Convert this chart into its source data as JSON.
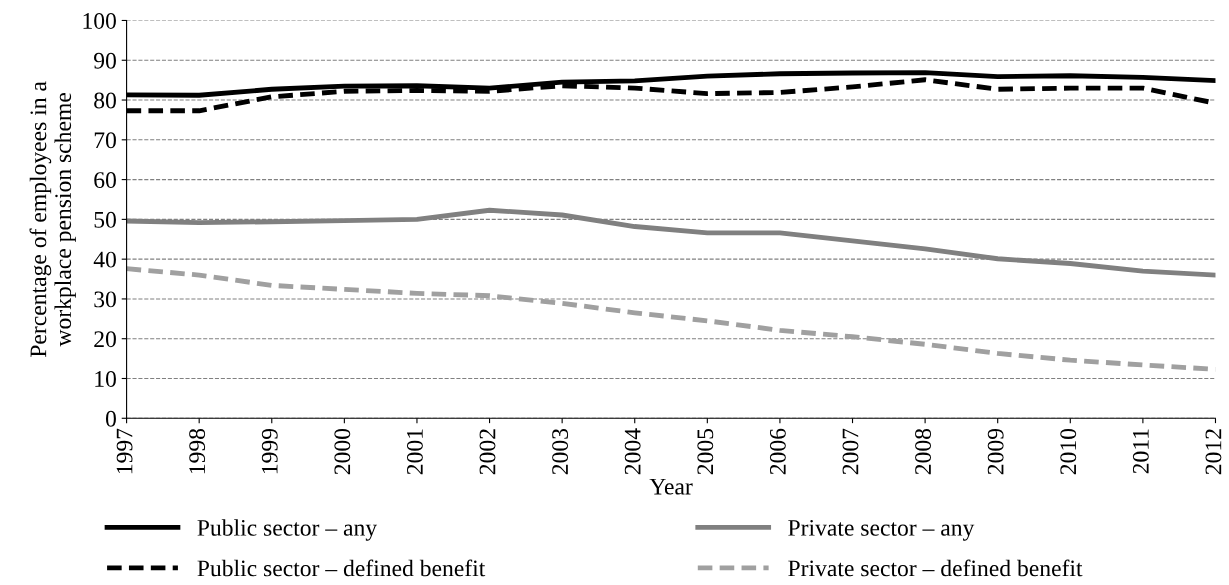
{
  "chart_data": {
    "type": "line",
    "xlabel": "Year",
    "ylabel": "Percentage of employees in a\nworkplace pension scheme",
    "x": [
      1997,
      1998,
      1999,
      2000,
      2001,
      2002,
      2003,
      2004,
      2005,
      2006,
      2007,
      2008,
      2009,
      2010,
      2011,
      2012
    ],
    "xlim": [
      1997,
      2012
    ],
    "xticks": [
      1997,
      1998,
      1999,
      2000,
      2001,
      2002,
      2003,
      2004,
      2005,
      2006,
      2007,
      2008,
      2009,
      2010,
      2011,
      2012
    ],
    "ylim": [
      0,
      100
    ],
    "yticks": [
      0,
      10,
      20,
      30,
      40,
      50,
      60,
      70,
      80,
      90,
      100
    ],
    "grid": "y",
    "legend": "bottom",
    "marker": "none",
    "series": [
      {
        "name": "Public sector – any",
        "color": "#000000",
        "line_style": "solid",
        "values": [
          81.3,
          81.2,
          82.7,
          83.5,
          83.6,
          83.0,
          84.5,
          84.8,
          86.0,
          86.6,
          86.8,
          86.9,
          85.9,
          86.1,
          85.7,
          84.9
        ]
      },
      {
        "name": "Public sector – defined benefit",
        "color": "#000000",
        "line_style": "dashed",
        "values": [
          77.3,
          77.3,
          80.8,
          82.2,
          82.4,
          82.2,
          83.6,
          83.0,
          81.6,
          81.9,
          83.3,
          85.1,
          82.7,
          83.0,
          83.0,
          79.2
        ]
      },
      {
        "name": "Private sector – any",
        "color": "#808080",
        "line_style": "solid",
        "values": [
          49.6,
          49.2,
          49.4,
          49.7,
          50.0,
          52.3,
          51.1,
          48.2,
          46.6,
          46.6,
          44.6,
          42.6,
          40.1,
          38.9,
          37.0,
          36.0
        ]
      },
      {
        "name": "Private sector – defined benefit",
        "color": "#a0a0a0",
        "line_style": "dashed",
        "values": [
          37.6,
          36.0,
          33.4,
          32.4,
          31.4,
          30.8,
          28.9,
          26.5,
          24.5,
          22.1,
          20.5,
          18.6,
          16.3,
          14.6,
          13.4,
          12.3
        ]
      }
    ]
  }
}
